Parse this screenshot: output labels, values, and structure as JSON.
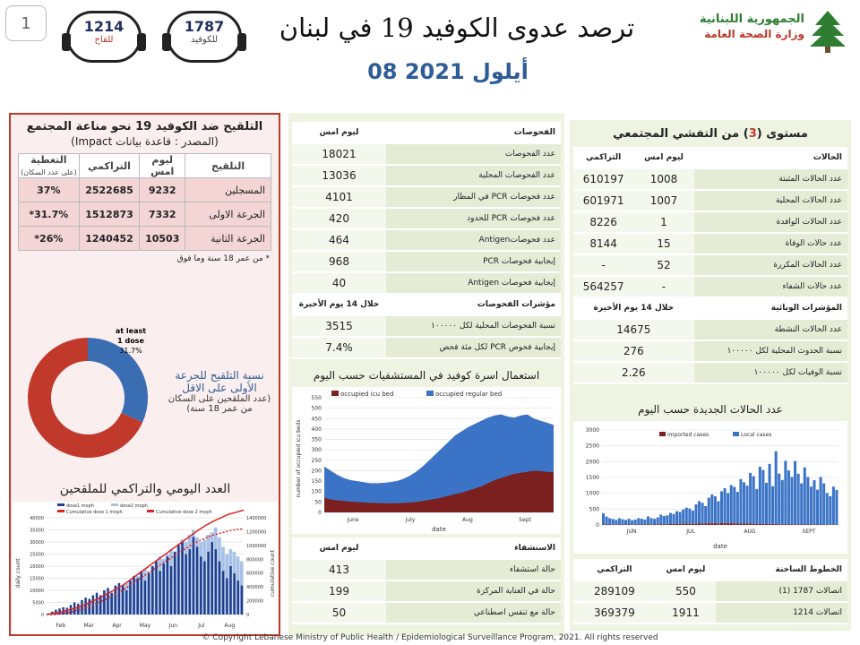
{
  "page_number": "1",
  "bubbles": [
    {
      "value": "1214",
      "label": "للقاح"
    },
    {
      "value": "1787",
      "label": "للكوفيد"
    }
  ],
  "title": "ترصد عدوى الكوفيد 19 في لبنان",
  "date": "08 أيلول 2021",
  "ministry": {
    "line1": "الجمهورية اللبنانية",
    "line2": "وزارة الصحة العامة"
  },
  "vaccination": {
    "title": "التلقيح ضد الكوفيد 19  نحو مناعة المجتمع",
    "source": "(المصدر : قاعدة بيانات Impact)",
    "headers": {
      "label": "التلقيح",
      "yesterday": "ليوم امس",
      "cumulative": "التراكمي",
      "coverage": "التغطية",
      "coverage_note": "(على عدد السكان)"
    },
    "rows": [
      {
        "label": "المسجلين",
        "yesterday": "9232",
        "cumulative": "2522685",
        "coverage": "37%"
      },
      {
        "label": "الجرعة الاولى",
        "yesterday": "7332",
        "cumulative": "1512873",
        "coverage": "*31.7%"
      },
      {
        "label": "الجرعة الثانية",
        "yesterday": "10503",
        "cumulative": "1240452",
        "coverage": "*26%"
      }
    ],
    "note": "* من عمر 18  سنة وما فوق",
    "donut": {
      "value": 31.7,
      "inner_label_1": "at least",
      "inner_label_2": "1 dose",
      "inner_label_3": "31.7%"
    },
    "donut_caption": [
      "نسبة التلقيح للجرعة",
      "الأولى على الاقل",
      "(عدد الملقحين على السكان",
      "من عمر 18 سنة)"
    ],
    "daily_title": "العدد اليومي والتراكمي للملقحين"
  },
  "vacc_chart": {
    "type": "bar",
    "legend": [
      "dose1 moph",
      "dose2 moph",
      "Cumulative dose 1 moph",
      "Cumulative dose 2 moph"
    ],
    "ylabel_left": "daily count",
    "ylabel_right": "cumulative count",
    "months": [
      "Feb",
      "Mar",
      "Apr",
      "May",
      "Jun",
      "Jul",
      "Aug"
    ],
    "yticks_left": [
      "0",
      "5000",
      "10000",
      "15000",
      "20000",
      "25000",
      "30000",
      "35000",
      "40000"
    ],
    "yticks_right": [
      "0",
      "200000",
      "400000",
      "600000",
      "800000",
      "1000000",
      "1200000",
      "1400000"
    ],
    "ylim_left": [
      0,
      40000
    ],
    "ylim_right": [
      0,
      1400000
    ],
    "dose1_daily": [
      500,
      1200,
      2000,
      2500,
      3000,
      2800,
      4000,
      5000,
      4500,
      6000,
      7000,
      6500,
      8000,
      9000,
      8000,
      10000,
      11000,
      9000,
      12000,
      13000,
      12000,
      10000,
      14000,
      16000,
      15000,
      18000,
      14000,
      17000,
      20000,
      22000,
      18000,
      21000,
      24000,
      20000,
      26000,
      29000,
      30000,
      25000,
      27000,
      32000,
      28000,
      24000,
      22000,
      26000,
      30000,
      27000,
      22000,
      18000,
      15000,
      20000,
      17000,
      14000,
      12000
    ],
    "dose2_daily": [
      0,
      0,
      300,
      800,
      1200,
      1500,
      2000,
      2500,
      3000,
      3500,
      4000,
      5000,
      6000,
      5500,
      7000,
      8000,
      9000,
      8500,
      10000,
      12000,
      11000,
      13000,
      14000,
      15000,
      16000,
      17000,
      19000,
      18000,
      20000,
      22000,
      24000,
      23000,
      25000,
      27000,
      26000,
      28000,
      31000,
      30000,
      33000,
      35000,
      32000,
      30000,
      31000,
      33000,
      34000,
      36000,
      32000,
      28000,
      25000,
      27000,
      26000,
      24000,
      22000
    ],
    "cum_dose1": [
      0,
      20000,
      40000,
      70000,
      100000,
      140000,
      190000,
      240000,
      300000,
      360000,
      420000,
      500000,
      580000,
      660000,
      740000,
      820000,
      900000,
      980000,
      1060000,
      1140000,
      1220000,
      1290000,
      1350000,
      1400000,
      1450000,
      1480000,
      1510000
    ],
    "cum_dose2": [
      0,
      0,
      10000,
      30000,
      60000,
      90000,
      130000,
      180000,
      230000,
      290000,
      350000,
      420000,
      500000,
      570000,
      640000,
      720000,
      790000,
      860000,
      930000,
      1000000,
      1060000,
      1110000,
      1150000,
      1180000,
      1210000,
      1230000,
      1240000
    ]
  },
  "tests": {
    "header": {
      "label": "الفحوصات",
      "yesterday": "ليوم امس"
    },
    "rows": [
      {
        "label": "عدد الفحوصات",
        "value": "18021"
      },
      {
        "label": "عدد الفحوصات المحلية",
        "value": "13036"
      },
      {
        "label": "عدد فحوصات  PCR في المطار",
        "value": "4101"
      },
      {
        "label": "عدد فحوصات  PCR للحدود",
        "value": "420"
      },
      {
        "label": "عدد فحوصاتAntigen",
        "value": "464"
      },
      {
        "label": "إيجابية فحوصات     PCR",
        "value": "968"
      },
      {
        "label": "إيجابية فحوصات   Antigen",
        "value": "40"
      }
    ],
    "indicators_header": {
      "label": "مؤشرات الفحوصات",
      "period": "خلال 14 يوم الأخيرة"
    },
    "indicators": [
      {
        "label": "نسبة الفحوصات  المحلية لكل ١٠٠٠٠٠",
        "value": "3515"
      },
      {
        "label": "إيجابية فحوص PCR لكل مئة فحص",
        "value": "7.4%"
      }
    ]
  },
  "hospital_chart": {
    "title": "استعمال اسرة كوفيد في المستشفيات حسب اليوم",
    "type": "area",
    "legend": [
      "occupied icu bed",
      "occupied regular bed"
    ],
    "xlabel": "date",
    "ylabel": "number of occupied icu beds",
    "months": [
      "June",
      "July",
      "Aug",
      "Sept"
    ],
    "yticks": [
      "0",
      "50",
      "100",
      "150",
      "200",
      "250",
      "300",
      "350",
      "400",
      "450",
      "500",
      "550"
    ],
    "ylim": [
      0,
      550
    ],
    "icu": [
      70,
      62,
      58,
      55,
      52,
      50,
      48,
      46,
      45,
      44,
      43,
      44,
      45,
      47,
      50,
      55,
      60,
      65,
      72,
      80,
      88,
      95,
      105,
      115,
      125,
      140,
      155,
      165,
      175,
      185,
      190,
      195,
      200,
      198,
      195,
      192
    ],
    "total": [
      220,
      200,
      180,
      165,
      155,
      150,
      145,
      140,
      140,
      142,
      145,
      150,
      160,
      175,
      195,
      220,
      250,
      280,
      310,
      340,
      370,
      390,
      410,
      425,
      440,
      455,
      465,
      470,
      460,
      455,
      465,
      470,
      450,
      440,
      430,
      420
    ]
  },
  "hospital": {
    "header": {
      "label": "الاستشفاء",
      "yesterday": "ليوم امس"
    },
    "rows": [
      {
        "label": "حالة استشفاء",
        "value": "413"
      },
      {
        "label": "حالة في العناية المركزة",
        "value": "199"
      },
      {
        "label": "حالة مع تنفس اصطناعي",
        "value": "50"
      }
    ]
  },
  "spread": {
    "title_a": "مستوى (",
    "title_level": "3",
    "title_b": ") من التفشي المجتمعي",
    "header": {
      "label": "الحالات",
      "yesterday": "ليوم امس",
      "cumulative": "التراكمي"
    },
    "rows": [
      {
        "label": "عدد الحالات المثبتة",
        "yesterday": "1008",
        "cumulative": "610197"
      },
      {
        "label": "عدد الحالات المحلية",
        "yesterday": "1007",
        "cumulative": "601971"
      },
      {
        "label": "عدد الحالات الوافدة",
        "yesterday": "1",
        "cumulative": "8226"
      },
      {
        "label": "عدد حالات الوفاة",
        "yesterday": "15",
        "cumulative": "8144"
      },
      {
        "label": "عدد الحالات المكررة",
        "yesterday": "52",
        "cumulative": "-"
      },
      {
        "label": "عدد حالات الشفاء",
        "yesterday": "-",
        "cumulative": "564257"
      }
    ],
    "indicators_header": {
      "label": "المؤشرات الوبائية",
      "period": "خلال 14 يوم الأخيرة"
    },
    "indicators": [
      {
        "label": "عدد الحالات النشطة",
        "value": "14675"
      },
      {
        "label": "نسبة الحدوث المحلية لكل ١٠٠٠٠٠",
        "value": "276"
      },
      {
        "label": "نسبة الوفيات لكل ١٠٠٠٠٠",
        "value": "2.26"
      }
    ]
  },
  "cases_chart": {
    "title": "عدد الحالات الجديدة حسب اليوم",
    "type": "bar",
    "legend": [
      "imported cases",
      "Local cases"
    ],
    "xlabel": "date",
    "months": [
      "JUN",
      "JUL",
      "AUG",
      "SEPT"
    ],
    "yticks": [
      "0",
      "500",
      "1000",
      "1500",
      "2000",
      "2500",
      "3000"
    ],
    "ylim": [
      0,
      3000
    ],
    "local": [
      350,
      250,
      200,
      180,
      150,
      200,
      170,
      150,
      180,
      140,
      160,
      200,
      180,
      160,
      250,
      200,
      180,
      220,
      300,
      260,
      280,
      350,
      320,
      400,
      380,
      450,
      500,
      480,
      420,
      600,
      700,
      650,
      550,
      800,
      900,
      850,
      700,
      1000,
      1100,
      950,
      1200,
      1150,
      1000,
      1400,
      1300,
      1200,
      1600,
      1500,
      1100,
      1800,
      1700,
      1300,
      1900,
      1200,
      2300,
      1600,
      1400,
      2000,
      1700,
      1500,
      2000,
      1600,
      1300,
      1800,
      1500,
      1200,
      1400,
      1100,
      1500,
      1300,
      1000,
      900,
      1200,
      1100
    ],
    "imported": [
      20,
      15,
      15,
      10,
      10,
      15,
      12,
      10,
      15,
      10,
      12,
      15,
      15,
      12,
      20,
      18,
      15,
      20,
      25,
      22,
      25,
      30,
      28,
      35,
      32,
      40,
      45,
      40,
      35,
      50,
      55,
      50,
      45,
      60,
      62,
      58,
      50,
      65,
      60,
      55,
      58,
      52,
      45,
      50,
      48,
      42,
      45,
      40,
      35,
      38,
      35,
      30,
      30,
      25,
      28,
      22,
      20,
      25,
      22,
      18,
      20,
      18,
      15,
      18,
      15,
      12,
      14,
      12,
      14,
      12,
      10,
      8,
      10,
      8
    ]
  },
  "hotlines": {
    "header": {
      "label": "الخطوط الساخنة",
      "yesterday": "ليوم امس",
      "cumulative": "التراكمي"
    },
    "rows": [
      {
        "label": "اتصالات 1787 (1)",
        "yesterday": "550",
        "cumulative": "289109"
      },
      {
        "label": "اتصالات 1214",
        "yesterday": "1911",
        "cumulative": "369379"
      }
    ]
  },
  "copyright": "© Copyright Lebanese Ministry of Public Health / Epidemiological Surveillance Program, 2021. All rights reserved",
  "colors": {
    "red": "#c0392b",
    "darkred": "#7b1f1f",
    "blue": "#3b6db3",
    "navy": "#1f2f5e",
    "green_bg": "#eef3e2",
    "pink_bg": "#fbeeee"
  }
}
